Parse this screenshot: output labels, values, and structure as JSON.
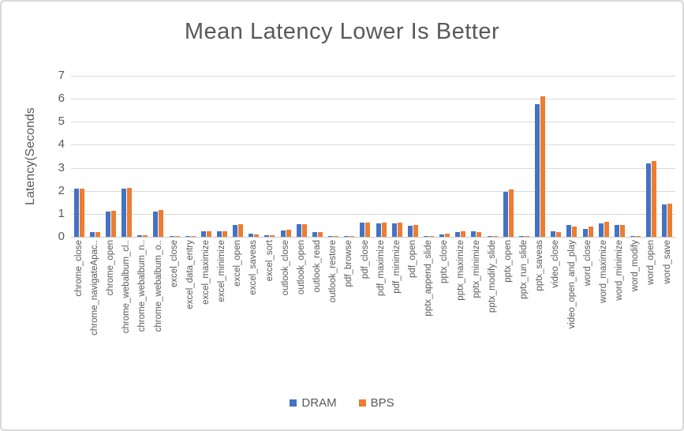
{
  "chart_data": {
    "type": "bar",
    "title": "Mean Latency Lower Is Better",
    "xlabel": "",
    "ylabel": "Latency(Seconds",
    "ylim": [
      0,
      7
    ],
    "ytick_step": 1,
    "grid": true,
    "legend_position": "bottom-center",
    "colors": {
      "dram": "#4472C4",
      "bps": "#ED7D31",
      "gridline": "#D9D9D9",
      "text": "#595959"
    },
    "categories": [
      "chrome_close",
      "chrome_navigateApac..",
      "chrome_open",
      "chrome_webalbum_cl..",
      "chrome_webalbum_n..",
      "chrome_webalbum_o..",
      "excel_close",
      "excel_data_entry",
      "excel_maximize",
      "excel_minimize",
      "excel_open",
      "excel_saveas",
      "excel_sort",
      "outlook_close",
      "outlook_open",
      "outlook_read",
      "outlook_restore",
      "pdf_browse",
      "pdf_close",
      "pdf_maximize",
      "pdf_minimize",
      "pdf_open",
      "pptx_append_slide",
      "pptx_close",
      "pptx_maximize",
      "pptx_minimize",
      "pptx_modify_slide",
      "pptx_open",
      "pptx_run_slide",
      "pptx_saveas",
      "video_close",
      "video_open_and_play",
      "word_close",
      "word_maximize",
      "word_minimize",
      "word_modify",
      "word_open",
      "word_save"
    ],
    "series": [
      {
        "name": "DRAM",
        "color": "#4472C4",
        "values": [
          2.1,
          0.2,
          1.1,
          2.1,
          0.08,
          1.1,
          0.05,
          0.05,
          0.25,
          0.25,
          0.5,
          0.15,
          0.07,
          0.28,
          0.55,
          0.22,
          0.04,
          0.04,
          0.63,
          0.6,
          0.6,
          0.48,
          0.04,
          0.09,
          0.2,
          0.23,
          0.05,
          1.95,
          0.05,
          5.75,
          0.23,
          0.5,
          0.35,
          0.6,
          0.5,
          0.04,
          3.2,
          1.4
        ]
      },
      {
        "name": "BPS",
        "color": "#ED7D31",
        "values": [
          2.1,
          0.22,
          1.12,
          2.12,
          0.08,
          1.15,
          0.05,
          0.05,
          0.25,
          0.25,
          0.55,
          0.1,
          0.08,
          0.3,
          0.55,
          0.22,
          0.04,
          0.04,
          0.63,
          0.62,
          0.62,
          0.5,
          0.04,
          0.13,
          0.23,
          0.2,
          0.05,
          2.05,
          0.05,
          6.1,
          0.21,
          0.43,
          0.45,
          0.65,
          0.52,
          0.05,
          3.3,
          1.45
        ]
      }
    ]
  }
}
